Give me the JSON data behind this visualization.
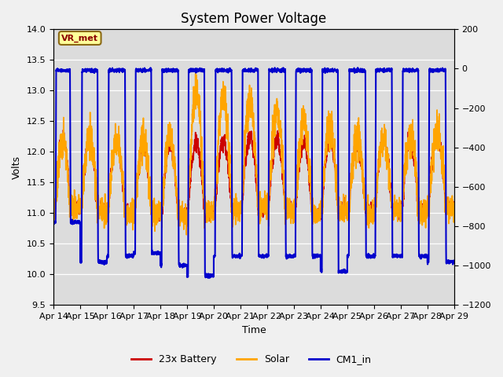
{
  "title": "System Power Voltage",
  "xlabel": "Time",
  "ylabel_left": "Volts",
  "ylim_left": [
    9.5,
    14.0
  ],
  "ylim_right": [
    -1200,
    200
  ],
  "yticks_left": [
    9.5,
    10.0,
    10.5,
    11.0,
    11.5,
    12.0,
    12.5,
    13.0,
    13.5,
    14.0
  ],
  "yticks_right": [
    -1200,
    -1000,
    -800,
    -600,
    -400,
    -200,
    0,
    200
  ],
  "x_tick_labels": [
    "Apr 14",
    "Apr 15",
    "Apr 16",
    "Apr 17",
    "Apr 18",
    "Apr 19",
    "Apr 20",
    "Apr 21",
    "Apr 22",
    "Apr 23",
    "Apr 24",
    "Apr 25",
    "Apr 26",
    "Apr 27",
    "Apr 28",
    "Apr 29"
  ],
  "plot_bg_color": "#dcdcdc",
  "annotation_text": "VR_met",
  "annotation_bg": "#ffff99",
  "annotation_border": "#8B6914",
  "legend_items": [
    {
      "label": "23x Battery",
      "color": "#cc0000",
      "lw": 1.2
    },
    {
      "label": "Solar",
      "color": "#ffa500",
      "lw": 1.2
    },
    {
      "label": "CM1_in",
      "color": "#0000cc",
      "lw": 1.5
    }
  ],
  "title_fontsize": 12,
  "axis_label_fontsize": 9,
  "tick_fontsize": 8
}
